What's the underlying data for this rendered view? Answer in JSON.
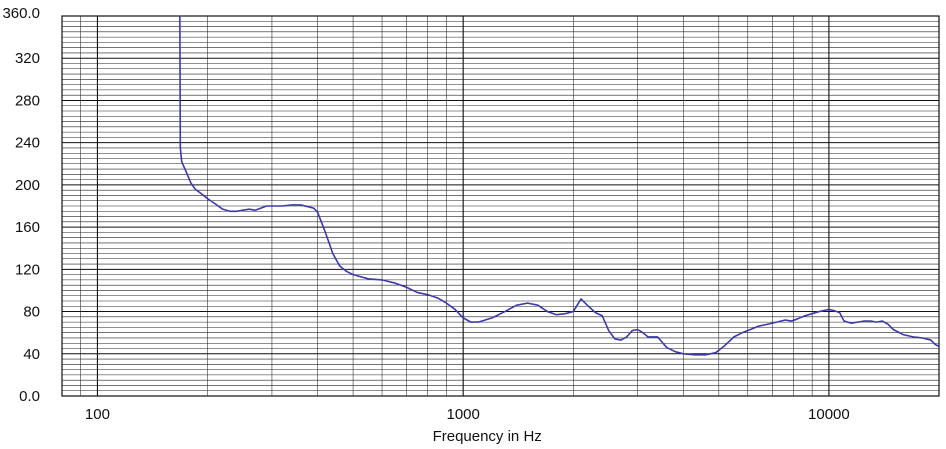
{
  "chart_data": {
    "type": "line",
    "title": "",
    "xlabel": "Frequency in Hz",
    "ylabel": "",
    "x_scale": "log",
    "xlim": [
      80,
      20000
    ],
    "ylim": [
      0,
      360
    ],
    "x_ticks": [
      100,
      1000,
      10000
    ],
    "x_tick_labels": [
      "100",
      "1000",
      "10000"
    ],
    "y_ticks": [
      0,
      40,
      80,
      120,
      160,
      200,
      240,
      280,
      320,
      360
    ],
    "y_tick_labels": [
      "0.0",
      "40",
      "80",
      "120",
      "160",
      "200",
      "240",
      "280",
      "320",
      "360.0"
    ],
    "grid": true,
    "legend": "none",
    "colors": {
      "line": "#3b3ba8",
      "grid_major": "#111111",
      "grid_minor": "#222222",
      "background": "#ffffff"
    },
    "series": [
      {
        "x": [
          168,
          168.5,
          170,
          175,
          180,
          185,
          190,
          195,
          200,
          210,
          220,
          230,
          240,
          250,
          260,
          270,
          280,
          290,
          300,
          320,
          340,
          360,
          380,
          390,
          400,
          420,
          440,
          460,
          480,
          500,
          550,
          600,
          650,
          700,
          750,
          800,
          850,
          900,
          950,
          1000,
          1050,
          1100,
          1200,
          1300,
          1400,
          1500,
          1600,
          1700,
          1800,
          1900,
          2000,
          2050,
          2100,
          2200,
          2300,
          2400,
          2500,
          2600,
          2700,
          2800,
          2900,
          3000,
          3100,
          3200,
          3400,
          3600,
          3800,
          4000,
          4300,
          4600,
          4900,
          5200,
          5500,
          5800,
          6100,
          6400,
          6800,
          7200,
          7600,
          7900,
          8200,
          8600,
          9000,
          9400,
          9700,
          10000,
          10300,
          10700,
          11000,
          11500,
          12000,
          12500,
          13000,
          13500,
          14000,
          14500,
          15000,
          16000,
          17000,
          18000,
          19000,
          19500,
          20000
        ],
        "y": [
          360,
          235,
          222,
          212,
          202,
          196,
          193,
          190,
          187,
          182,
          177,
          175,
          175,
          176,
          177,
          176,
          178,
          180,
          180,
          180,
          181,
          181,
          179,
          178,
          174,
          155,
          135,
          123,
          118,
          115,
          111,
          110,
          107,
          103,
          98,
          96,
          93,
          88,
          82,
          74,
          70,
          70,
          74,
          80,
          86,
          88,
          86,
          80,
          77,
          78,
          80,
          86,
          92,
          85,
          79,
          76,
          62,
          54,
          53,
          56,
          62,
          63,
          60,
          56,
          56,
          46,
          42,
          40,
          39,
          39,
          41,
          48,
          56,
          60,
          63,
          66,
          68,
          70,
          72,
          71,
          73,
          76,
          78,
          80,
          81,
          82,
          81,
          79,
          71,
          69,
          70,
          71,
          71,
          70,
          71,
          68,
          63,
          58,
          56,
          55,
          53,
          49,
          47
        ]
      }
    ]
  }
}
